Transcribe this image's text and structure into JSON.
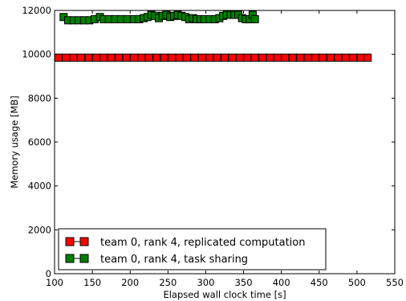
{
  "chart_data": {
    "type": "line",
    "title": "",
    "xlabel": "Elapsed wall clock time [s]",
    "ylabel": "Memory usage [MB]",
    "xlim": [
      100,
      550
    ],
    "ylim": [
      0,
      12000
    ],
    "xticks": [
      "100",
      "150",
      "200",
      "250",
      "300",
      "350",
      "400",
      "450",
      "500",
      "550"
    ],
    "yticks": [
      "0",
      "2000",
      "4000",
      "6000",
      "8000",
      "10000",
      "12000"
    ],
    "grid": false,
    "legend_position": "bottom-left",
    "series": [
      {
        "name": "team 0, rank 4, replicated computation",
        "color": "#ff0000",
        "marker": "square",
        "x": [
          105,
          115,
          125,
          135,
          145,
          155,
          165,
          175,
          185,
          195,
          205,
          215,
          225,
          235,
          245,
          255,
          265,
          275,
          285,
          295,
          305,
          315,
          325,
          335,
          345,
          355,
          365,
          375,
          385,
          395,
          405,
          415,
          425,
          435,
          445,
          455,
          465,
          475,
          485,
          495,
          505,
          514
        ],
        "y": [
          9850,
          9850,
          9850,
          9850,
          9850,
          9850,
          9850,
          9850,
          9850,
          9850,
          9850,
          9850,
          9850,
          9850,
          9850,
          9850,
          9850,
          9850,
          9850,
          9850,
          9850,
          9850,
          9850,
          9850,
          9850,
          9850,
          9850,
          9850,
          9850,
          9850,
          9850,
          9850,
          9850,
          9850,
          9850,
          9850,
          9850,
          9850,
          9850,
          9850,
          9850,
          9850
        ]
      },
      {
        "name": "team 0, rank 4, task sharing",
        "color": "#008000",
        "marker": "square",
        "x": [
          112,
          118,
          125,
          132,
          139,
          146,
          153,
          160,
          165,
          172,
          180,
          188,
          196,
          205,
          212,
          218,
          223,
          228,
          233,
          238,
          243,
          248,
          253,
          258,
          263,
          268,
          273,
          278,
          283,
          288,
          293,
          298,
          305,
          312,
          318,
          323,
          328,
          333,
          338,
          343,
          348,
          353,
          358,
          362,
          365
        ],
        "y": [
          11700,
          11550,
          11550,
          11550,
          11550,
          11550,
          11600,
          11700,
          11600,
          11600,
          11600,
          11600,
          11600,
          11600,
          11600,
          11650,
          11700,
          11800,
          11750,
          11650,
          11750,
          11800,
          11700,
          11750,
          11800,
          11750,
          11700,
          11600,
          11650,
          11600,
          11600,
          11600,
          11600,
          11600,
          11650,
          11750,
          11800,
          11800,
          11800,
          11800,
          11650,
          11600,
          11600,
          11800,
          11600
        ]
      }
    ]
  }
}
